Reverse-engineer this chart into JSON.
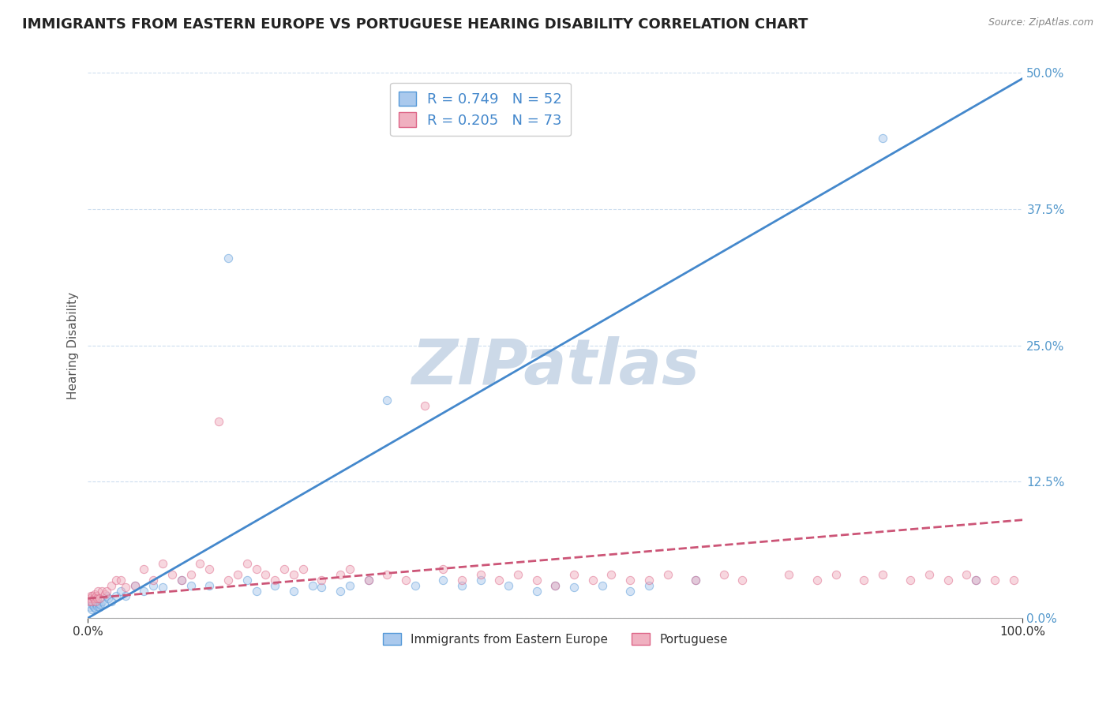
{
  "title": "IMMIGRANTS FROM EASTERN EUROPE VS PORTUGUESE HEARING DISABILITY CORRELATION CHART",
  "source": "Source: ZipAtlas.com",
  "ylabel": "Hearing Disability",
  "xlim": [
    0,
    100
  ],
  "ylim": [
    0,
    50
  ],
  "yticks": [
    0,
    12.5,
    25.0,
    37.5,
    50.0
  ],
  "ytick_labels": [
    "0.0%",
    "12.5%",
    "25.0%",
    "37.5%",
    "50.0%"
  ],
  "xtick_labels": [
    "0.0%",
    "100.0%"
  ],
  "background_color": "#ffffff",
  "watermark": "ZIPatlas",
  "watermark_color": "#ccd9e8",
  "series": [
    {
      "name": "Immigrants from Eastern Europe",
      "R": 0.749,
      "N": 52,
      "color": "#aac9ed",
      "edge_color": "#5599d8",
      "line_color": "#4488cc",
      "line_style": "solid",
      "x": [
        0.2,
        0.3,
        0.4,
        0.5,
        0.6,
        0.7,
        0.8,
        0.9,
        1.0,
        1.1,
        1.2,
        1.3,
        1.5,
        1.7,
        2.0,
        2.2,
        2.5,
        3.0,
        3.5,
        4.0,
        5.0,
        6.0,
        7.0,
        8.0,
        10.0,
        11.0,
        13.0,
        15.0,
        17.0,
        18.0,
        20.0,
        22.0,
        24.0,
        25.0,
        27.0,
        28.0,
        30.0,
        32.0,
        35.0,
        38.0,
        40.0,
        42.0,
        45.0,
        48.0,
        50.0,
        52.0,
        55.0,
        58.0,
        60.0,
        65.0,
        85.0,
        95.0
      ],
      "y": [
        1.0,
        1.5,
        0.8,
        1.2,
        1.0,
        1.5,
        0.9,
        1.3,
        1.1,
        1.4,
        1.0,
        1.2,
        1.5,
        1.3,
        2.0,
        1.8,
        1.5,
        2.0,
        2.5,
        2.0,
        3.0,
        2.5,
        3.0,
        2.8,
        3.5,
        3.0,
        3.0,
        33.0,
        3.5,
        2.5,
        3.0,
        2.5,
        3.0,
        2.8,
        2.5,
        3.0,
        3.5,
        20.0,
        3.0,
        3.5,
        3.0,
        3.5,
        3.0,
        2.5,
        3.0,
        2.8,
        3.0,
        2.5,
        3.0,
        3.5,
        44.0,
        3.5
      ],
      "regression": {
        "x0": 0,
        "y0": 0,
        "x1": 100,
        "y1": 49.5
      }
    },
    {
      "name": "Portuguese",
      "R": 0.205,
      "N": 73,
      "color": "#f0b0c0",
      "edge_color": "#dd6688",
      "line_color": "#cc5577",
      "line_style": "dashed",
      "x": [
        0.1,
        0.2,
        0.3,
        0.4,
        0.5,
        0.6,
        0.7,
        0.8,
        0.9,
        1.0,
        1.1,
        1.2,
        1.5,
        1.8,
        2.0,
        2.5,
        3.0,
        3.5,
        4.0,
        5.0,
        6.0,
        7.0,
        8.0,
        9.0,
        10.0,
        11.0,
        12.0,
        13.0,
        14.0,
        15.0,
        16.0,
        17.0,
        18.0,
        19.0,
        20.0,
        21.0,
        22.0,
        23.0,
        25.0,
        27.0,
        28.0,
        30.0,
        32.0,
        34.0,
        36.0,
        38.0,
        40.0,
        42.0,
        44.0,
        46.0,
        48.0,
        50.0,
        52.0,
        54.0,
        56.0,
        58.0,
        60.0,
        62.0,
        65.0,
        68.0,
        70.0,
        75.0,
        78.0,
        80.0,
        83.0,
        85.0,
        88.0,
        90.0,
        92.0,
        94.0,
        95.0,
        97.0,
        99.0
      ],
      "y": [
        1.5,
        1.8,
        2.0,
        1.5,
        2.0,
        1.8,
        2.2,
        1.5,
        2.0,
        1.8,
        2.5,
        1.8,
        2.5,
        2.2,
        2.5,
        3.0,
        3.5,
        3.5,
        2.8,
        3.0,
        4.5,
        3.5,
        5.0,
        4.0,
        3.5,
        4.0,
        5.0,
        4.5,
        18.0,
        3.5,
        4.0,
        5.0,
        4.5,
        4.0,
        3.5,
        4.5,
        4.0,
        4.5,
        3.5,
        4.0,
        4.5,
        3.5,
        4.0,
        3.5,
        19.5,
        4.5,
        3.5,
        4.0,
        3.5,
        4.0,
        3.5,
        3.0,
        4.0,
        3.5,
        4.0,
        3.5,
        3.5,
        4.0,
        3.5,
        4.0,
        3.5,
        4.0,
        3.5,
        4.0,
        3.5,
        4.0,
        3.5,
        4.0,
        3.5,
        4.0,
        3.5,
        3.5,
        3.5
      ],
      "regression": {
        "x0": 0,
        "y0": 1.8,
        "x1": 100,
        "y1": 9.0
      }
    }
  ],
  "grid_color": "#ccddee",
  "title_fontsize": 13,
  "axis_label_fontsize": 11,
  "tick_fontsize": 11,
  "legend_fontsize": 13,
  "marker_size": 55,
  "marker_alpha": 0.5,
  "marker_lw": 0.8
}
